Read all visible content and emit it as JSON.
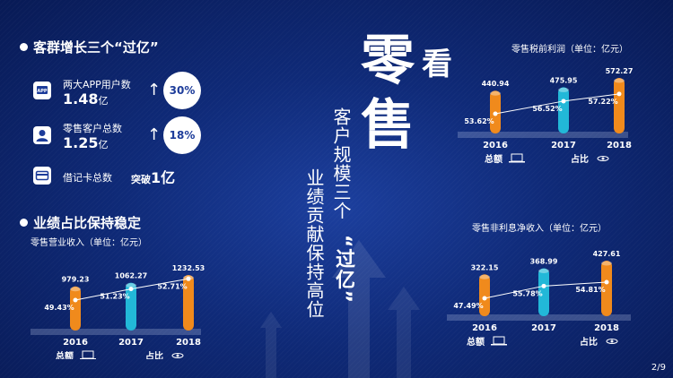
{
  "slide": {
    "page_number": "2/9",
    "headline": {
      "char1": "零",
      "char2": "看",
      "char3": "售"
    },
    "vertical_lines": [
      "客户规模三个",
      "“过亿”",
      "业绩贡献保持高位"
    ]
  },
  "left": {
    "section1_title": "客群增长三个“过亿”",
    "metrics": [
      {
        "label": "两大APP用户数",
        "value": "1.48",
        "unit": "亿",
        "growth": "30%",
        "icon": "app-icon"
      },
      {
        "label": "零售客户总数",
        "value": "1.25",
        "unit": "亿",
        "growth": "18%",
        "icon": "person-icon"
      },
      {
        "label": "借记卡总数",
        "prefix": "突破",
        "value": "1",
        "unit": "亿",
        "icon": "card-icon"
      }
    ],
    "section2_title": "业绩占比保持稳定"
  },
  "legend": {
    "total": "总额",
    "share": "占比"
  },
  "colors": {
    "orange": "#f08a1c",
    "cyan": "#22b8d8",
    "line": "#ffffff"
  },
  "chart_data": [
    {
      "type": "bar",
      "title": "零售营业收入（单位：亿元）",
      "categories": [
        "2016",
        "2017",
        "2018"
      ],
      "series": [
        {
          "name": "总额",
          "values": [
            979.23,
            1062.27,
            1232.53
          ]
        },
        {
          "name": "占比",
          "values": [
            49.43,
            51.23,
            52.71
          ]
        }
      ],
      "value_labels": [
        "979.23",
        "1062.27",
        "1232.53"
      ],
      "share_labels": [
        "49.43%",
        "51.23%",
        "52.71%"
      ]
    },
    {
      "type": "bar",
      "title": "零售税前利润（单位：亿元）",
      "categories": [
        "2016",
        "2017",
        "2018"
      ],
      "series": [
        {
          "name": "总额",
          "values": [
            440.94,
            475.95,
            572.27
          ]
        },
        {
          "name": "占比",
          "values": [
            53.62,
            56.52,
            57.22
          ]
        }
      ],
      "value_labels": [
        "440.94",
        "475.95",
        "572.27"
      ],
      "share_labels": [
        "53.62%",
        "56.52%",
        "57.22%"
      ]
    },
    {
      "type": "bar",
      "title": "零售非利息净收入（单位：亿元）",
      "categories": [
        "2016",
        "2017",
        "2018"
      ],
      "series": [
        {
          "name": "总额",
          "values": [
            322.15,
            368.99,
            427.61
          ]
        },
        {
          "name": "占比",
          "values": [
            47.49,
            55.78,
            54.81
          ]
        }
      ],
      "value_labels": [
        "322.15",
        "368.99",
        "427.61"
      ],
      "share_labels": [
        "47.49%",
        "55.78%",
        "54.81%"
      ]
    }
  ]
}
